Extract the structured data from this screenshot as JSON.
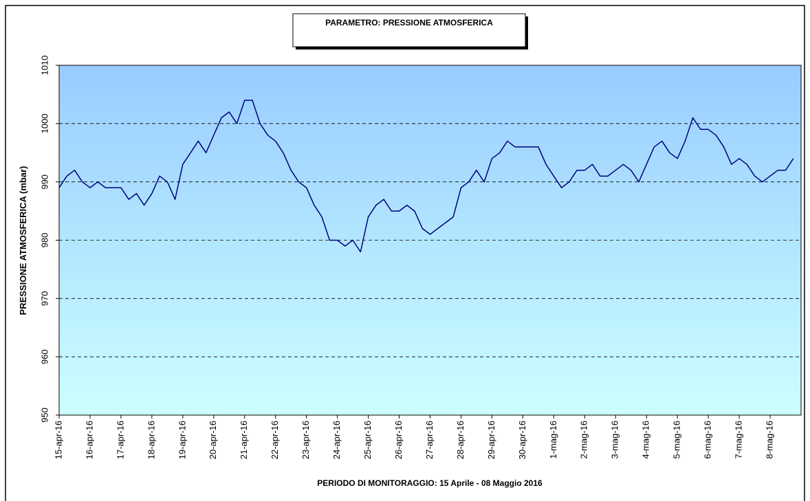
{
  "chart_data": {
    "type": "line",
    "title": "PARAMETRO: PRESSIONE ATMOSFERICA",
    "x_label": "PERIODO DI MONITORAGGIO: 15 Aprile - 08 Maggio 2016",
    "y_label": "PRESSIONE ATMOSFERICA (mbar)",
    "categories": [
      "15-apr-16",
      null,
      null,
      null,
      "16-apr-16",
      null,
      null,
      null,
      "17-apr-16",
      null,
      null,
      null,
      "18-apr-16",
      null,
      null,
      null,
      "19-apr-16",
      null,
      null,
      null,
      "20-apr-16",
      null,
      null,
      null,
      "21-apr-16",
      null,
      null,
      null,
      "22-apr-16",
      null,
      null,
      null,
      "23-apr-16",
      null,
      null,
      null,
      "24-apr-16",
      null,
      null,
      null,
      "25-apr-16",
      null,
      null,
      null,
      "26-apr-16",
      null,
      null,
      null,
      "27-apr-16",
      null,
      null,
      null,
      "28-apr-16",
      null,
      null,
      null,
      "29-apr-16",
      null,
      null,
      null,
      "30-apr-16",
      null,
      null,
      null,
      "1-mag-16",
      null,
      null,
      null,
      "2-mag-16",
      null,
      null,
      null,
      "3-mag-16",
      null,
      null,
      null,
      "4-mag-16",
      null,
      null,
      null,
      "5-mag-16",
      null,
      null,
      null,
      "6-mag-16",
      null,
      null,
      null,
      "7-mag-16",
      null,
      null,
      null,
      "8-mag-16",
      null,
      null,
      null
    ],
    "series": [
      {
        "color": "#000080",
        "values": [
          989,
          991,
          992,
          990,
          989,
          990,
          989,
          989,
          989,
          987,
          988,
          986,
          988,
          991,
          990,
          987,
          993,
          995,
          997,
          995,
          998,
          1001,
          1002,
          1000,
          1004,
          1004,
          1000,
          998,
          997,
          995,
          992,
          990,
          989,
          986,
          984,
          980,
          980,
          979,
          980,
          978,
          984,
          986,
          987,
          985,
          985,
          986,
          985,
          982,
          981,
          982,
          983,
          984,
          989,
          990,
          992,
          990,
          994,
          995,
          997,
          996,
          996,
          996,
          996,
          993,
          991,
          989,
          990,
          992,
          992,
          993,
          991,
          991,
          992,
          993,
          992,
          990,
          993,
          996,
          997,
          995,
          994,
          997,
          1001,
          999,
          999,
          998,
          996,
          993,
          994,
          993,
          991,
          990,
          991,
          992,
          992,
          994
        ]
      }
    ],
    "ylim": [
      950,
      1010
    ],
    "yticks": [
      950,
      960,
      970,
      980,
      990,
      1000,
      1010
    ],
    "grid": true
  }
}
